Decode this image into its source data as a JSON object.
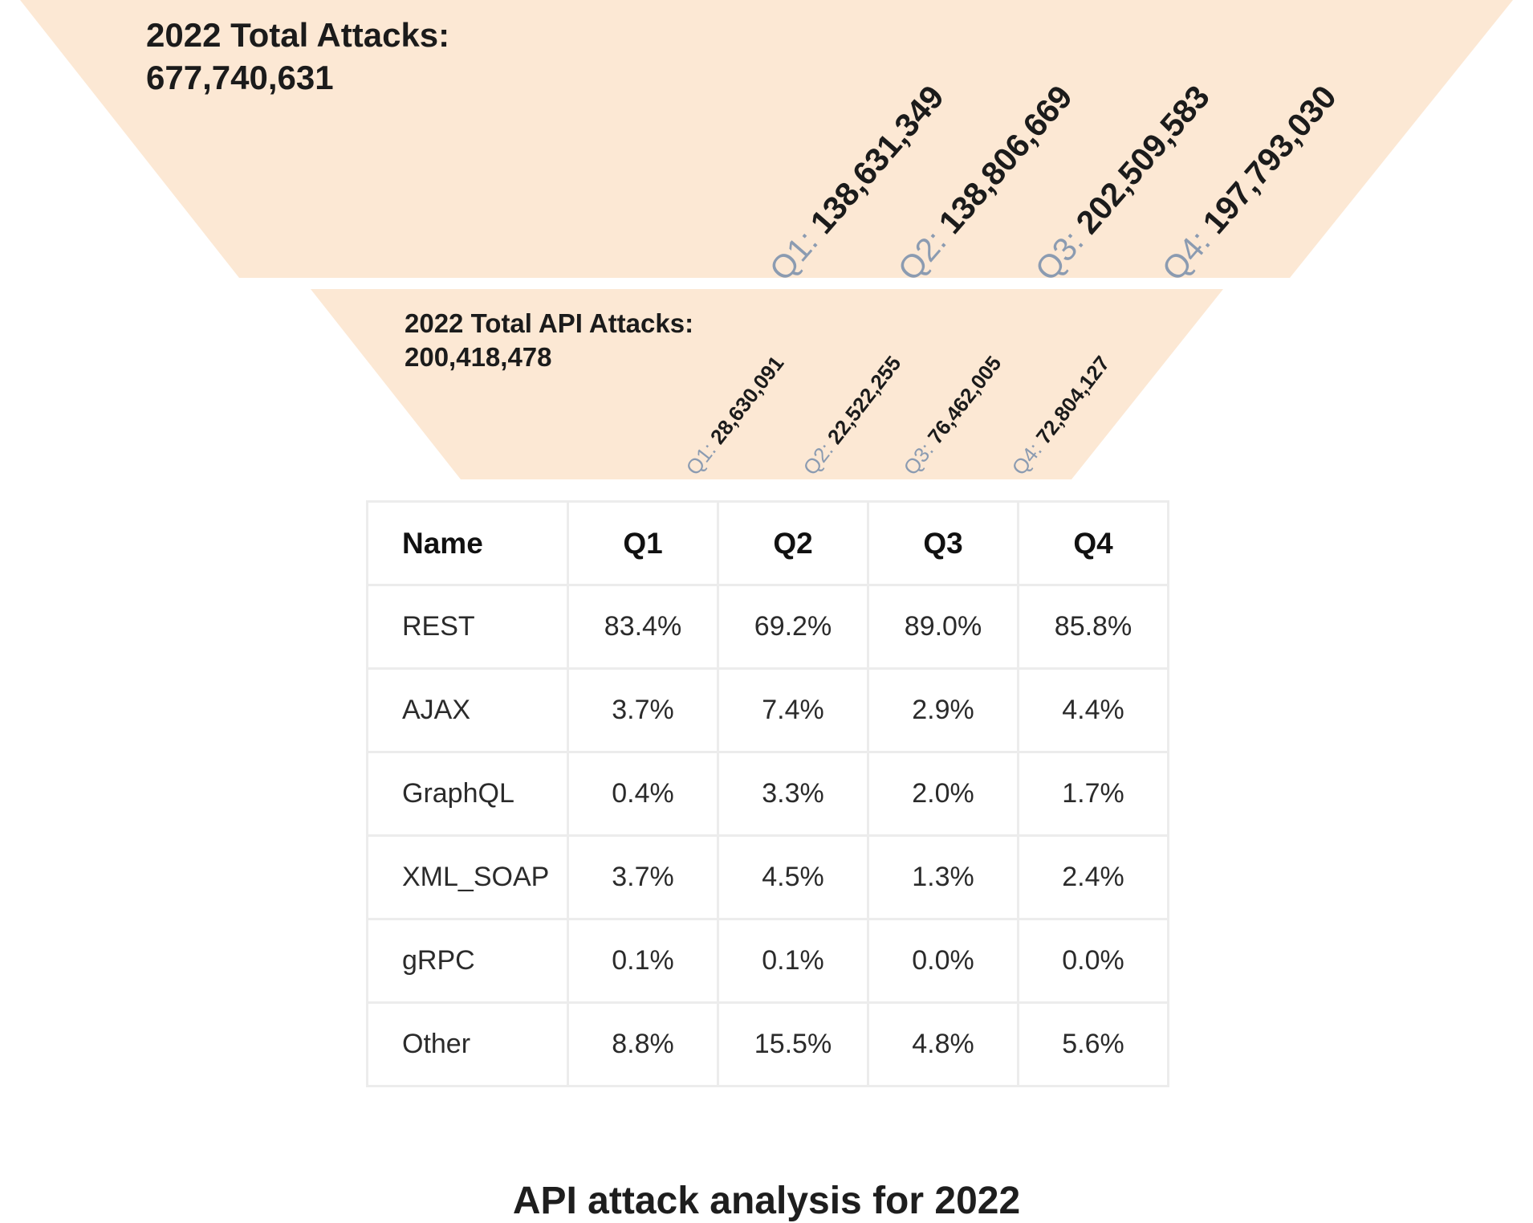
{
  "chart_data": {
    "type": "table",
    "funnel": {
      "total_attacks": {
        "label": "2022 Total Attacks:",
        "value": "677,740,631",
        "quarters": [
          {
            "prefix": "Q1:",
            "value": "138,631,349"
          },
          {
            "prefix": "Q2:",
            "value": "138,806,669"
          },
          {
            "prefix": "Q3:",
            "value": "202,509,583"
          },
          {
            "prefix": "Q4:",
            "value": "197,793,030"
          }
        ]
      },
      "api_attacks": {
        "label": "2022 Total API Attacks:",
        "value": "200,418,478",
        "quarters": [
          {
            "prefix": "Q1:",
            "value": "28,630,091"
          },
          {
            "prefix": "Q2:",
            "value": "22,522,255"
          },
          {
            "prefix": "Q3:",
            "value": "76,462,005"
          },
          {
            "prefix": "Q4:",
            "value": "72,804,127"
          }
        ]
      }
    },
    "table": {
      "columns": [
        "Name",
        "Q1",
        "Q2",
        "Q3",
        "Q4"
      ],
      "rows": [
        [
          "REST",
          "83.4%",
          "69.2%",
          "89.0%",
          "85.8%"
        ],
        [
          "AJAX",
          "3.7%",
          "7.4%",
          "2.9%",
          "4.4%"
        ],
        [
          "GraphQL",
          "0.4%",
          "3.3%",
          "2.0%",
          "1.7%"
        ],
        [
          "XML_SOAP",
          "3.7%",
          "4.5%",
          "1.3%",
          "2.4%"
        ],
        [
          "gRPC",
          "0.1%",
          "0.1%",
          "0.0%",
          "0.0%"
        ],
        [
          "Other",
          "8.8%",
          "15.5%",
          "4.8%",
          "5.6%"
        ]
      ]
    },
    "caption": "API attack analysis for 2022",
    "colors": {
      "funnel_fill": "#fce8d4",
      "quarter_prefix": "#8b9bb1",
      "table_border": "#ececec"
    }
  }
}
